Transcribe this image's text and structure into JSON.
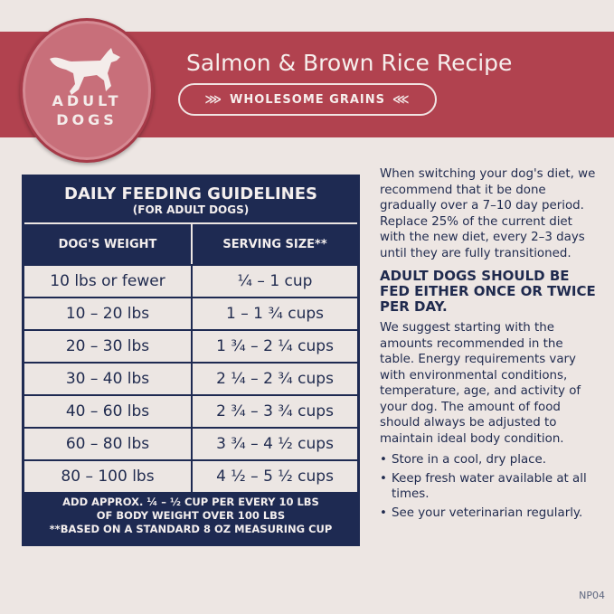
{
  "header": {
    "recipe_title": "Salmon & Brown Rice Recipe",
    "badge": "WHOLESOME GRAINS",
    "medallion": [
      "ADULT",
      "DOGS"
    ],
    "medallion_icon": "running-dog-icon"
  },
  "table": {
    "title": "DAILY FEEDING GUIDELINES",
    "subtitle": "(FOR ADULT DOGS)",
    "columns": [
      "DOG'S WEIGHT",
      "SERVING SIZE**"
    ],
    "rows": [
      [
        "10 lbs or fewer",
        "¼ – 1 cup"
      ],
      [
        "10 – 20 lbs",
        "1 – 1 ¾ cups"
      ],
      [
        "20 – 30 lbs",
        "1 ¾ – 2 ¼ cups"
      ],
      [
        "30 – 40 lbs",
        "2 ¼ – 2 ¾ cups"
      ],
      [
        "40 – 60 lbs",
        "2 ¾ – 3 ¾ cups"
      ],
      [
        "60 – 80 lbs",
        "3 ¾ – 4 ½ cups"
      ],
      [
        "80 – 100 lbs",
        "4 ½ – 5 ½ cups"
      ]
    ],
    "footer": [
      "ADD APPROX. ¼ – ½ CUP PER EVERY 10 LBS",
      "OF BODY WEIGHT OVER 100 LBS",
      "**BASED ON A STANDARD 8 OZ MEASURING CUP"
    ]
  },
  "side": {
    "intro": "When switching your dog's diet, we recommend that it be done gradually over a 7–10 day period. Replace 25% of the current diet with the new diet, every 2–3 days until they are fully transitioned.",
    "heading": "ADULT DOGS SHOULD BE FED EITHER ONCE OR TWICE PER DAY.",
    "body": "We suggest starting with the amounts recommended in the table. Energy requirements vary with environmental conditions, temperature, age, and activity of your dog. The amount of food should always be adjusted to maintain ideal body condition.",
    "bullets": [
      "Store in a cool, dry place.",
      "Keep fresh water available at all times.",
      "See your veterinarian regularly."
    ]
  },
  "code": "NP04",
  "colors": {
    "band": "#b1424f",
    "navy": "#1e2a52",
    "background": "#ede6e3"
  }
}
